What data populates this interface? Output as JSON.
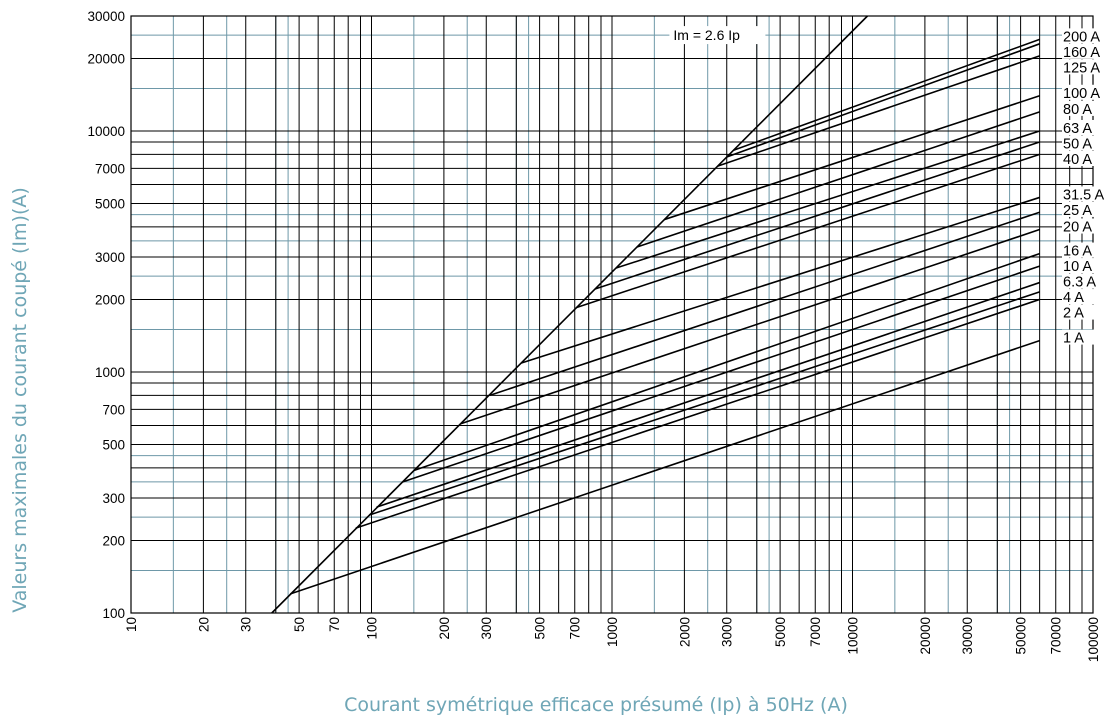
{
  "chart_data": {
    "type": "line",
    "title": "",
    "xlabel": "Courant symétrique efficace présumé (Ip) à 50Hz (A)",
    "ylabel": "Valeurs maximales du courant coupé (Im)(A)",
    "x_scale": "log",
    "y_scale": "log",
    "xlim": [
      10,
      100000
    ],
    "ylim": [
      100,
      30000
    ],
    "grid": true,
    "x_ticks": [
      10,
      20,
      30,
      50,
      70,
      100,
      200,
      300,
      500,
      700,
      1000,
      2000,
      3000,
      5000,
      7000,
      10000,
      20000,
      30000,
      50000,
      70000,
      100000
    ],
    "x_tick_labels": [
      "10",
      "20",
      "30",
      "50",
      "70",
      "100",
      "200",
      "300",
      "500",
      "700",
      "1000",
      "2000",
      "3000",
      "5000",
      "7000",
      "10000",
      "20000",
      "30000",
      "50000",
      "70000",
      "100000"
    ],
    "y_ticks": [
      100,
      200,
      300,
      500,
      700,
      1000,
      2000,
      3000,
      5000,
      7000,
      10000,
      20000,
      30000
    ],
    "y_tick_labels": [
      "100",
      "200",
      "300",
      "500",
      "700",
      "1000",
      "2000",
      "3000",
      "5000",
      "7000",
      "10000",
      "20000",
      "30000"
    ],
    "reference_line": {
      "label": "Im = 2.6 Ip",
      "x": [
        38.5,
        11540
      ],
      "y": [
        100,
        30000
      ]
    },
    "series": [
      {
        "name": "200 A",
        "x": [
          3200,
          60000
        ],
        "y": [
          8320,
          24000
        ]
      },
      {
        "name": "160 A",
        "x": [
          3000,
          60000
        ],
        "y": [
          7800,
          23000
        ]
      },
      {
        "name": "125 A",
        "x": [
          2750,
          60000
        ],
        "y": [
          7150,
          20500
        ]
      },
      {
        "name": "100 A",
        "x": [
          1650,
          60000
        ],
        "y": [
          4290,
          14000
        ]
      },
      {
        "name": "80 A",
        "x": [
          1270,
          60000
        ],
        "y": [
          3300,
          12000
        ]
      },
      {
        "name": "63 A",
        "x": [
          1040,
          60000
        ],
        "y": [
          2700,
          10000
        ]
      },
      {
        "name": "50 A",
        "x": [
          850,
          60000
        ],
        "y": [
          2210,
          9000
        ]
      },
      {
        "name": "40 A",
        "x": [
          710,
          60000
        ],
        "y": [
          1850,
          8000
        ]
      },
      {
        "name": "31.5 A",
        "x": [
          420,
          60000
        ],
        "y": [
          1090,
          5300
        ]
      },
      {
        "name": "25 A",
        "x": [
          310,
          60000
        ],
        "y": [
          800,
          4600
        ]
      },
      {
        "name": "20 A",
        "x": [
          235,
          60000
        ],
        "y": [
          610,
          3900
        ]
      },
      {
        "name": "16 A",
        "x": [
          150,
          60000
        ],
        "y": [
          390,
          3100
        ]
      },
      {
        "name": "10 A",
        "x": [
          135,
          60000
        ],
        "y": [
          350,
          2750
        ]
      },
      {
        "name": "6.3 A",
        "x": [
          105,
          60000
        ],
        "y": [
          275,
          2350
        ]
      },
      {
        "name": "4 A",
        "x": [
          98,
          60000
        ],
        "y": [
          255,
          2150
        ]
      },
      {
        "name": "2 A",
        "x": [
          86,
          60000
        ],
        "y": [
          225,
          2000
        ]
      },
      {
        "name": "1 A",
        "x": [
          46,
          60000
        ],
        "y": [
          120,
          1350
        ]
      }
    ]
  },
  "colors": {
    "grid_major": "#000000",
    "grid_minor": "#6e98a8",
    "axis_title": "#6fa6b6",
    "curve": "#000000"
  }
}
